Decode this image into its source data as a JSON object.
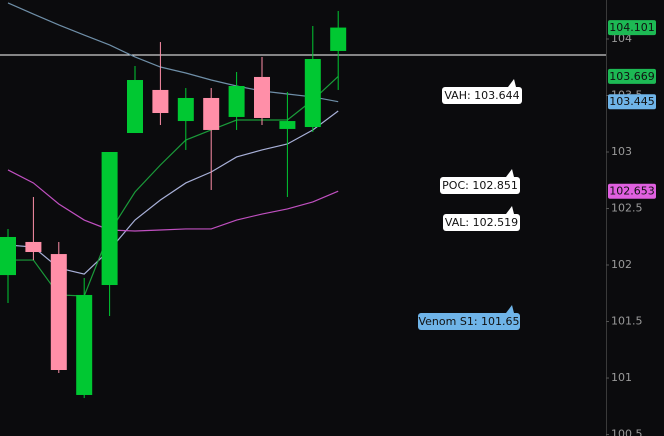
{
  "chart_data": {
    "type": "candlestick",
    "ylim": [
      100.487,
      104.345
    ],
    "yticks": [
      100.5,
      101,
      101.5,
      102,
      102.5,
      103,
      103.5,
      104
    ],
    "up_color": "#00c832",
    "down_color": "#ff8fa8",
    "candles": {
      "open": [
        101.911,
        102.204,
        102.097,
        100.85,
        101.823,
        103.168,
        103.549,
        103.274,
        103.478,
        103.31,
        103.664,
        103.204,
        103.221,
        103.894
      ],
      "high": [
        102.319,
        102.602,
        102.204,
        101.885,
        103.0,
        103.761,
        103.973,
        103.566,
        103.566,
        103.708,
        103.841,
        103.531,
        104.115,
        104.248
      ],
      "low": [
        101.664,
        102.044,
        101.044,
        100.823,
        101.549,
        103.168,
        103.239,
        103.018,
        102.664,
        103.195,
        103.239,
        102.602,
        103.177,
        103.549
      ],
      "close": [
        102.248,
        102.115,
        101.071,
        101.735,
        103.0,
        103.637,
        103.345,
        103.478,
        103.195,
        103.584,
        103.301,
        103.274,
        103.823,
        104.101
      ]
    },
    "series": [
      {
        "color": "#6f8fa8",
        "values": [
          104.319,
          104.221,
          104.124,
          104.035,
          103.947,
          103.841,
          103.752,
          103.699,
          103.637,
          103.584,
          103.54,
          103.513,
          103.487,
          103.445
        ]
      },
      {
        "color": "#a8b0d8",
        "values": [
          102.177,
          102.159,
          101.973,
          101.92,
          102.133,
          102.398,
          102.575,
          102.726,
          102.823,
          102.956,
          103.018,
          103.071,
          103.195,
          103.363
        ]
      },
      {
        "color": "#1a9b3a",
        "values": [
          102.044,
          102.044,
          101.735,
          101.726,
          102.292,
          102.646,
          102.885,
          103.106,
          103.195,
          103.283,
          103.283,
          103.283,
          103.46,
          103.669
        ]
      },
      {
        "color": "#c050c0",
        "values": [
          102.841,
          102.726,
          102.54,
          102.398,
          102.31,
          102.301,
          102.31,
          102.319,
          102.319,
          102.398,
          102.451,
          102.496,
          102.558,
          102.653
        ]
      }
    ],
    "horizontal_line": {
      "value": 103.858,
      "color": "#ffffff"
    },
    "price_labels": [
      {
        "value": 104.101,
        "color": "#1db954"
      },
      {
        "value": 103.669,
        "color": "#1db954"
      },
      {
        "value": 103.445,
        "color": "#6fb4e8"
      },
      {
        "value": 102.653,
        "color": "#e060e0"
      }
    ],
    "annotations": [
      {
        "text": "VAH: 103.644",
        "color": "#ffffff"
      },
      {
        "text": "POC: 102.851",
        "color": "#ffffff"
      },
      {
        "text": "VAL: 102.519",
        "color": "#ffffff"
      },
      {
        "text": "Venom S1: 101.65",
        "color": "#6fb4e8"
      }
    ]
  }
}
